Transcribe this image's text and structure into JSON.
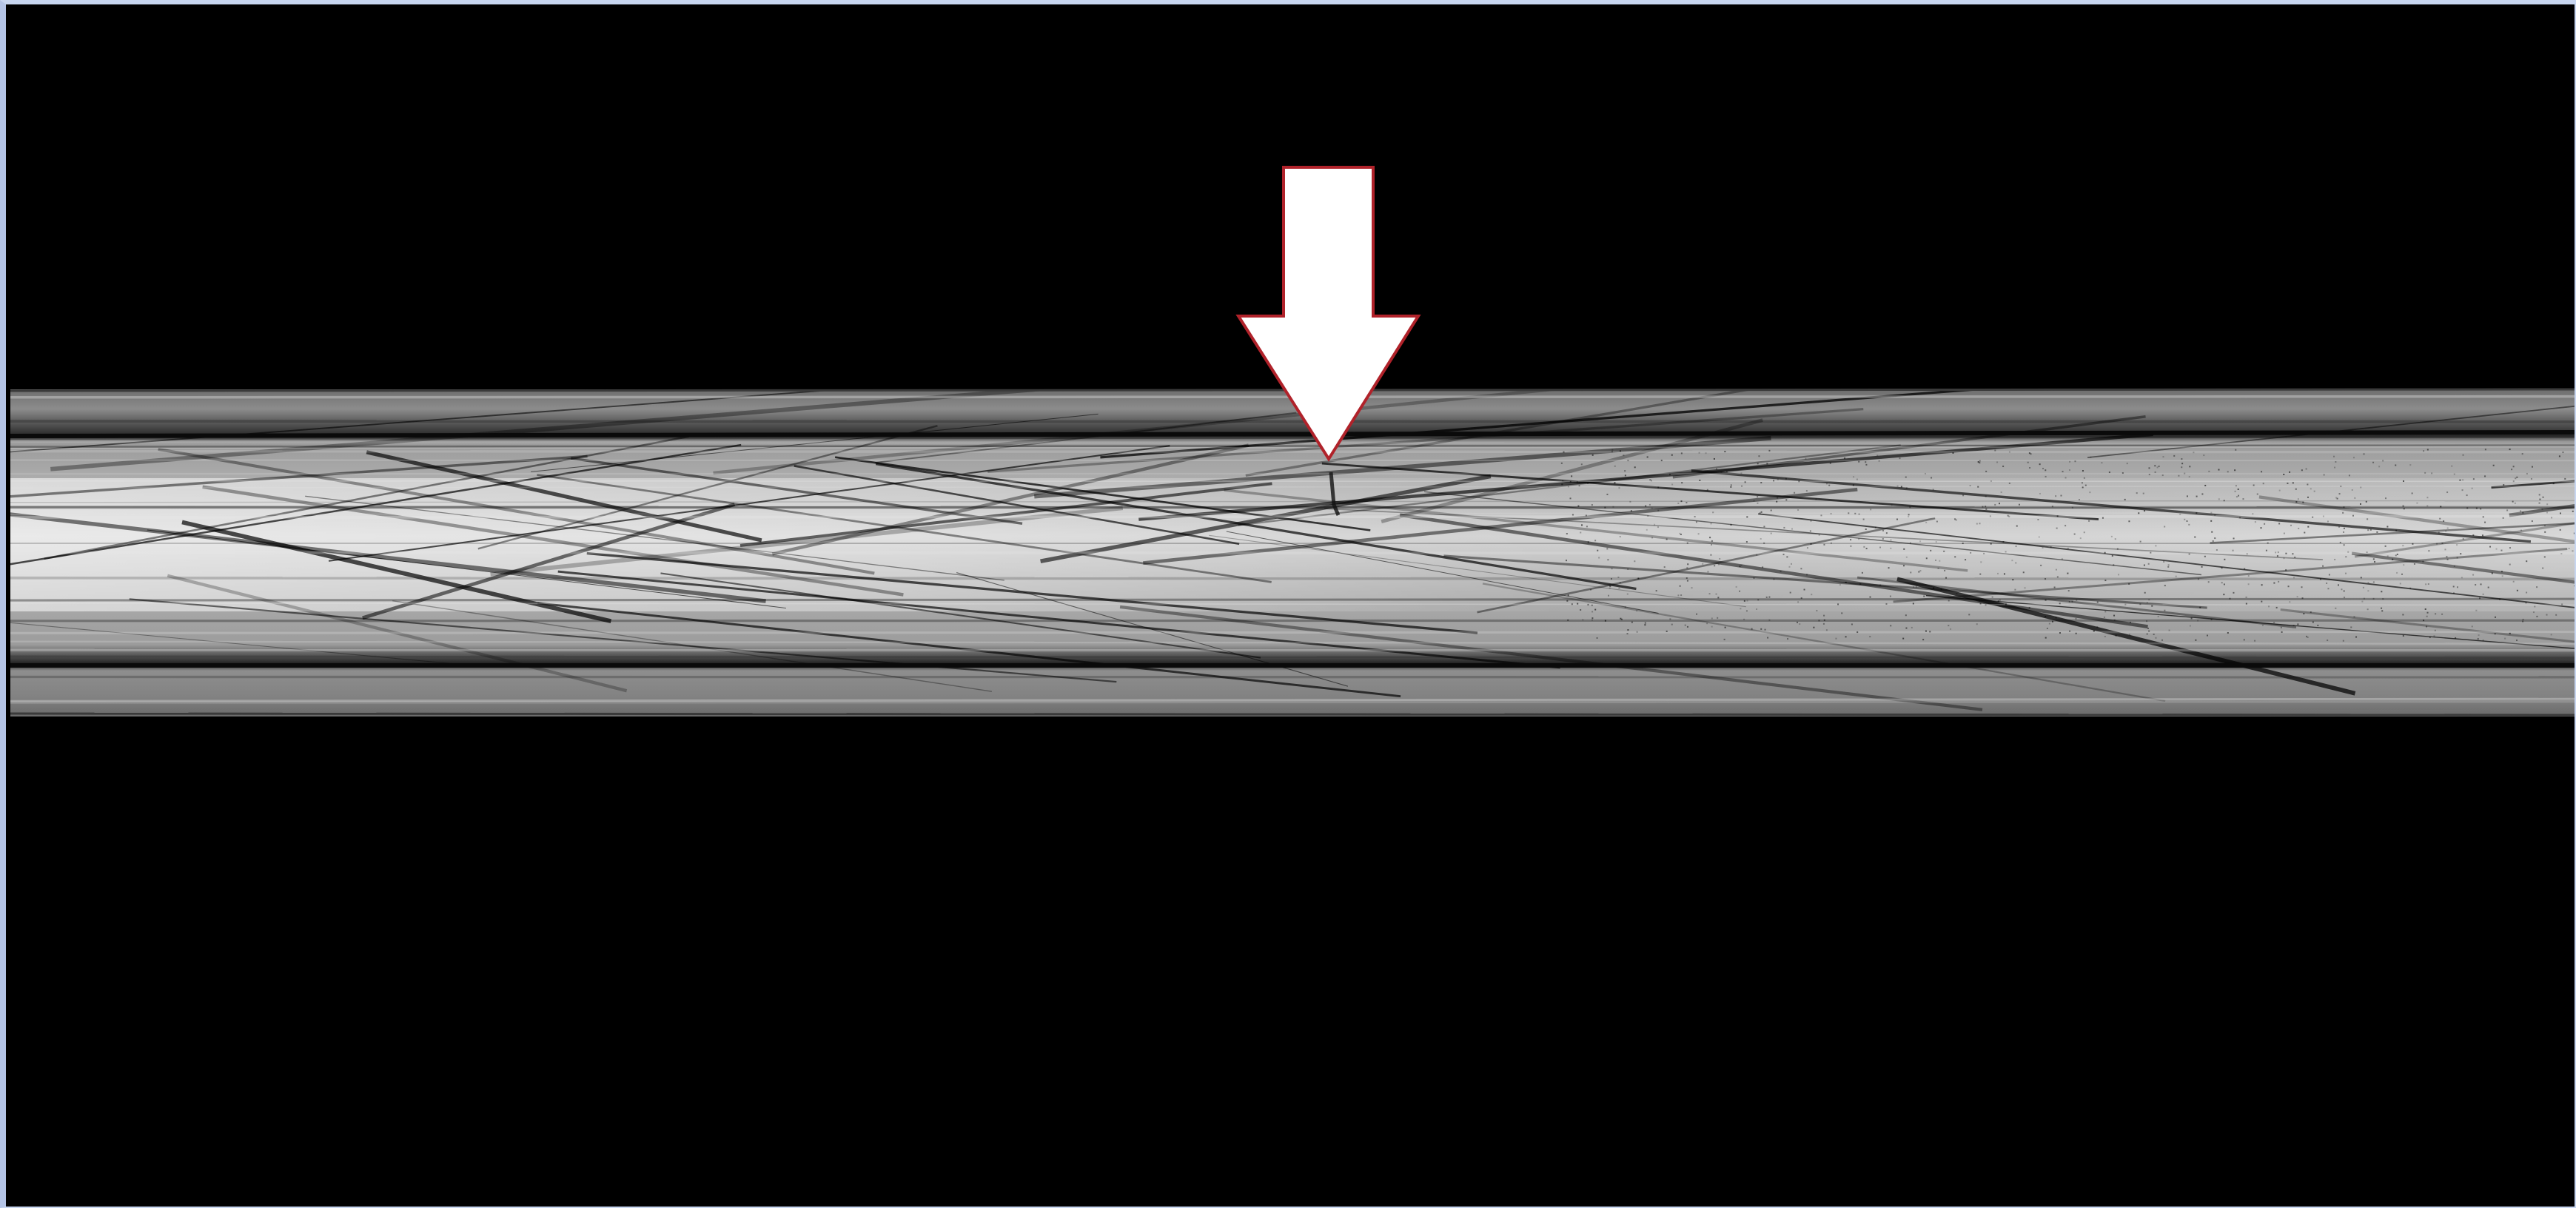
{
  "viewer": {
    "background_color": "#000000",
    "frame_color": "#c8d6f0"
  },
  "image": {
    "subject": "radiograph-of-tubular-specimen",
    "pipe_base_color": "#8a8a8a",
    "highlight_color": "#e8e8e8",
    "streak_color": "#000000"
  },
  "annotation": {
    "marker_icon": "down-arrow-icon",
    "marker_fill": "#ffffff",
    "marker_outline": "#b0222a"
  }
}
